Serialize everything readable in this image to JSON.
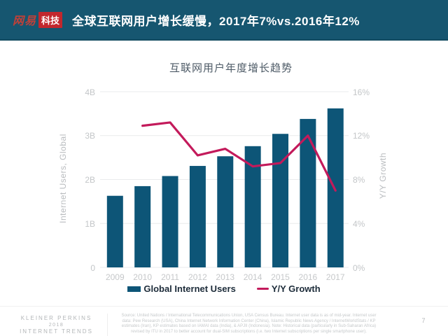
{
  "header": {
    "logo_netease": "网易",
    "logo_tech": "科技",
    "title": "全球互联网用户增长缓慢，2017年7%vs.2016年12%"
  },
  "chart": {
    "title": "互联网用户年度增长趋势",
    "left_axis_label": "Internet Users, Global",
    "right_axis_label": "Y/Y Growth",
    "left_ticks": [
      "4B",
      "3B",
      "2B",
      "1B",
      "0"
    ],
    "right_ticks": [
      "16%",
      "12%",
      "8%",
      "4%",
      "0%"
    ],
    "legend": {
      "bar_label": "Global Internet Users",
      "line_label": "Y/Y Growth"
    }
  },
  "chart_data": {
    "type": "bar+line",
    "title": "互联网用户年度增长趋势",
    "categories": [
      "2009",
      "2010",
      "2011",
      "2012",
      "2013",
      "2014",
      "2015",
      "2016",
      "2017"
    ],
    "series": [
      {
        "name": "Global Internet Users",
        "type": "bar",
        "axis": "left",
        "unit": "billions",
        "values": [
          1.63,
          1.85,
          2.08,
          2.31,
          2.53,
          2.76,
          3.04,
          3.38,
          3.62
        ]
      },
      {
        "name": "Y/Y Growth",
        "type": "line",
        "axis": "right",
        "unit": "%",
        "values": [
          null,
          12.9,
          13.2,
          10.2,
          10.8,
          9.2,
          9.5,
          12.0,
          7.0
        ]
      }
    ],
    "left_ylabel": "Internet Users, Global",
    "right_ylabel": "Y/Y Growth",
    "left_ylim": [
      0,
      4
    ],
    "right_ylim": [
      0,
      16
    ],
    "grid": true,
    "legend_position": "bottom"
  },
  "colors": {
    "header_bg": "#165670",
    "logo_red": "#c2272d",
    "bar": "#0d5577",
    "line": "#c31a5b",
    "grid": "#e9ebec",
    "tick_gray": "#c3c6c8"
  },
  "footer": {
    "brand_lines": [
      "KLEINER PERKINS",
      "2018",
      "INTERNET TRENDS"
    ],
    "source_lines": [
      "Source: United Nations / International Telecommunications Union, USA Census Bureau. Internet user data is as of mid-year. Internet user",
      "data: Pew Research (USA), China Internet Network Information Center (China), Islamic Republic News Agency / InternetWorldStats / KP",
      "estimates (Iran), KP estimates based on IAMAI data (India), & APJII (Indonesia). Note: Historical data (particularly in Sub-Saharan Africa)",
      "revised by ITU in 2017 to better account for dual-SIM subscriptions (i.e. two Internet subscriptions per single smartphone user)."
    ],
    "page_number": "7"
  }
}
